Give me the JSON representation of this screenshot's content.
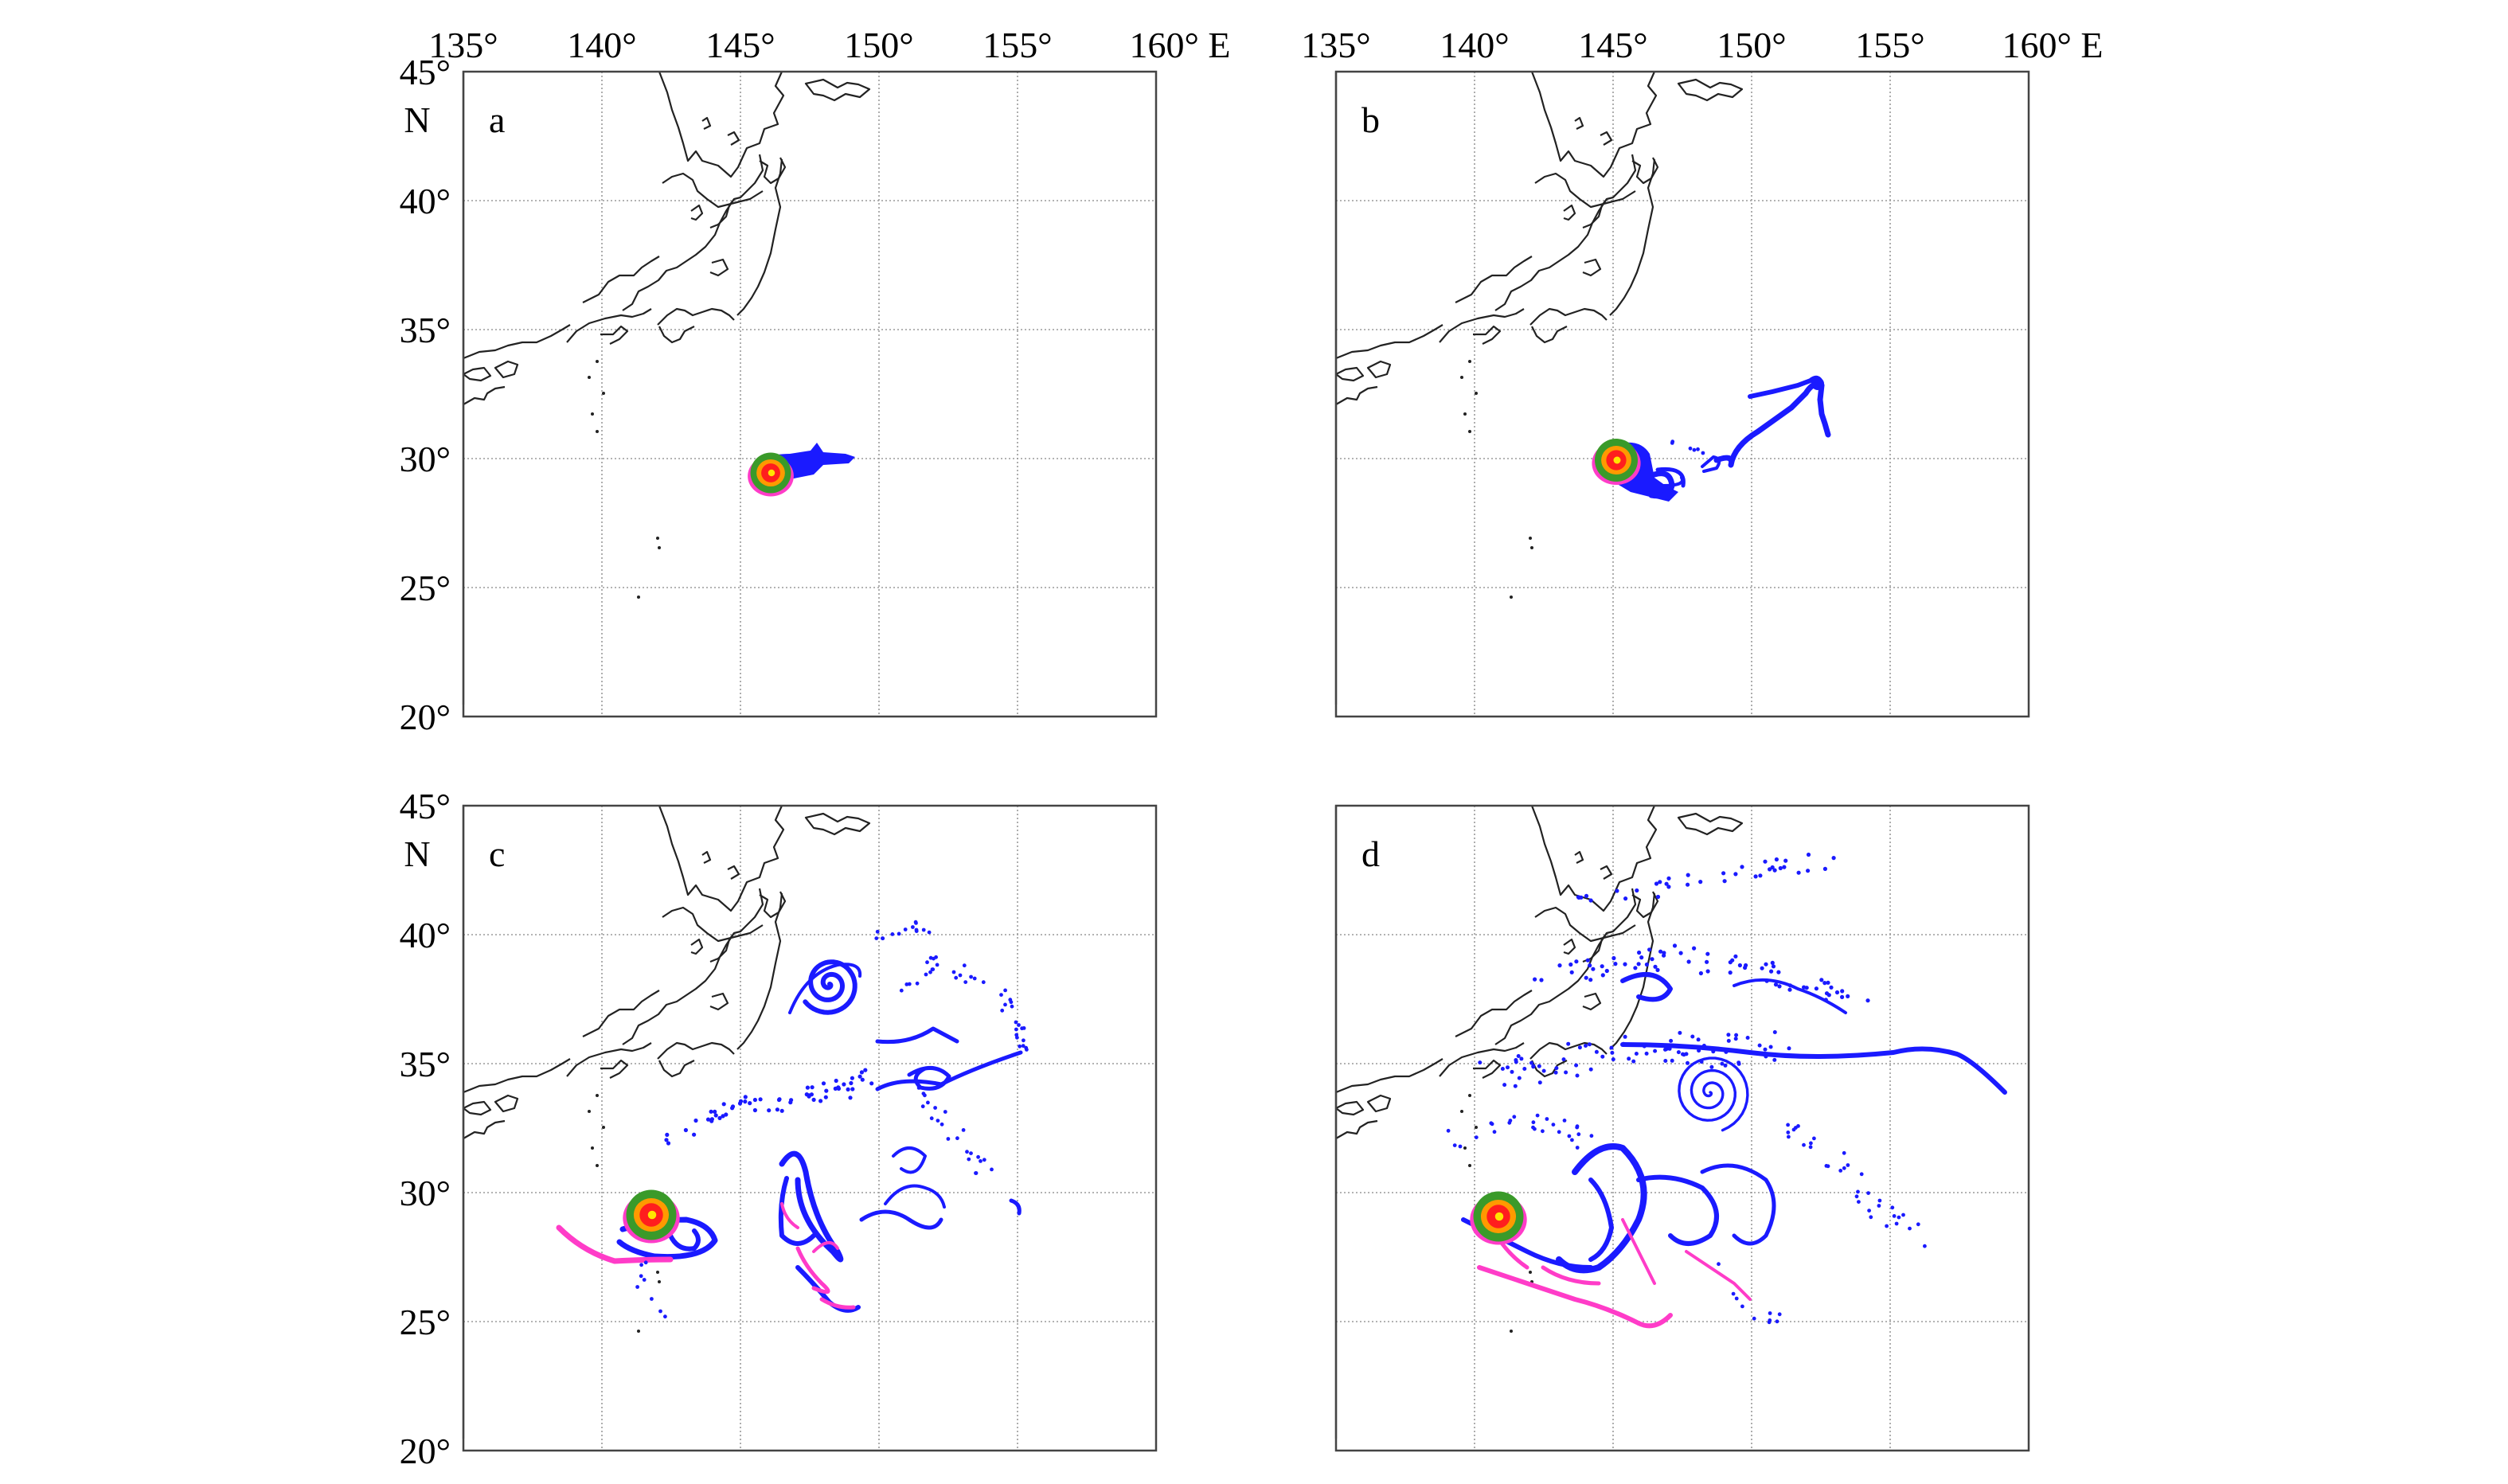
{
  "figure": {
    "lon_ticks": [
      "135°",
      "140°",
      "145°",
      "150°",
      "155°",
      "160° E"
    ],
    "lat_ticks": [
      "45°",
      "40°",
      "35°",
      "30°",
      "25°",
      "20°"
    ],
    "lat_unit": "N",
    "lon_range": [
      135,
      160
    ],
    "lat_range": [
      20,
      45
    ],
    "grid": true
  },
  "panels": [
    {
      "id": "a",
      "label": "a"
    },
    {
      "id": "b",
      "label": "b"
    },
    {
      "id": "c",
      "label": "c"
    },
    {
      "id": "d",
      "label": "d"
    }
  ],
  "colors": {
    "particles": "#1a1aff",
    "pink": "#ff3cc8",
    "green": "#3a9a2a",
    "orange": "#ff9a00",
    "red": "#ff1e1e",
    "yellow": "#ffe600",
    "coast": "#222222",
    "grid": "#9a9a9a"
  }
}
